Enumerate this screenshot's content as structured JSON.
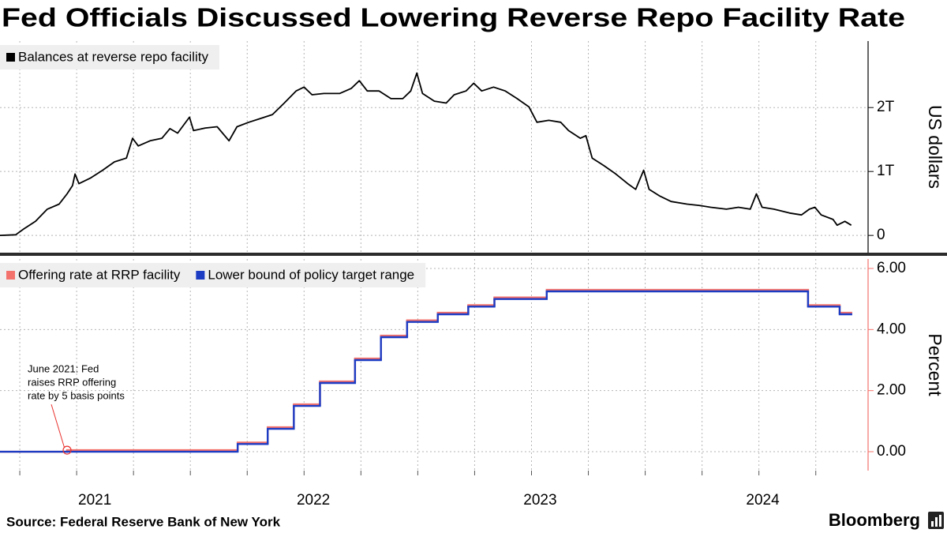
{
  "title": "Fed Officials Discussed Lowering Reverse Repo Facility Rate",
  "source": "Source: Federal Reserve Bank of New York",
  "brand": "Bloomberg",
  "chart_data": [
    {
      "type": "line",
      "x": [
        2021.163,
        2021.232,
        2021.267,
        2021.319,
        2021.371,
        2021.423,
        2021.458,
        2021.482,
        2021.493,
        2021.51,
        2021.562,
        2021.614,
        2021.666,
        2021.719,
        2021.746,
        2021.771,
        2021.823,
        2021.875,
        2021.91,
        2021.944,
        2021.996,
        2022.014,
        2022.066,
        2022.118,
        2022.17,
        2022.205,
        2022.257,
        2022.309,
        2022.361,
        2022.413,
        2022.465,
        2022.5,
        2022.535,
        2022.587,
        2022.656,
        2022.708,
        2022.743,
        2022.778,
        2022.83,
        2022.882,
        2022.934,
        2022.969,
        2022.996,
        2023.021,
        2023.073,
        2023.125,
        2023.16,
        2023.212,
        2023.246,
        2023.281,
        2023.333,
        2023.385,
        2023.437,
        2023.489,
        2023.524,
        2023.576,
        2023.628,
        2023.663,
        2023.715,
        2023.739,
        2023.767,
        2023.819,
        2023.871,
        2023.923,
        2023.958,
        2023.993,
        2024.017,
        2024.062,
        2024.114,
        2024.184,
        2024.236,
        2024.288,
        2024.357,
        2024.41,
        2024.462,
        2024.489,
        2024.514,
        2024.566,
        2024.635,
        2024.687,
        2024.722,
        2024.746,
        2024.774,
        2024.826,
        2024.844,
        2024.878,
        2024.906
      ],
      "series": [
        {
          "name": "Balances at reverse repo facility",
          "color": "#000000",
          "values": [
            0,
            10000000000.0,
            100000000000.0,
            220000000000.0,
            410000000000.0,
            490000000000.0,
            650000000000.0,
            780000000000.0,
            960000000000.0,
            810000000000.0,
            900000000000.0,
            1020000000000.0,
            1150000000000.0,
            1210000000000.0,
            1520000000000.0,
            1400000000000.0,
            1480000000000.0,
            1520000000000.0,
            1670000000000.0,
            1600000000000.0,
            1850000000000.0,
            1640000000000.0,
            1680000000000.0,
            1700000000000.0,
            1480000000000.0,
            1700000000000.0,
            1770000000000.0,
            1830000000000.0,
            1890000000000.0,
            2070000000000.0,
            2260000000000.0,
            2320000000000.0,
            2200000000000.0,
            2220000000000.0,
            2220000000000.0,
            2300000000000.0,
            2420000000000.0,
            2260000000000.0,
            2260000000000.0,
            2140000000000.0,
            2140000000000.0,
            2260000000000.0,
            2540000000000.0,
            2220000000000.0,
            2100000000000.0,
            2070000000000.0,
            2200000000000.0,
            2260000000000.0,
            2380000000000.0,
            2260000000000.0,
            2320000000000.0,
            2260000000000.0,
            2140000000000.0,
            2010000000000.0,
            1770000000000.0,
            1800000000000.0,
            1770000000000.0,
            1640000000000.0,
            1520000000000.0,
            1560000000000.0,
            1210000000000.0,
            1090000000000.0,
            960000000000.0,
            810000000000.0,
            720000000000.0,
            1020000000000.0,
            720000000000.0,
            620000000000.0,
            530000000000.0,
            490000000000.0,
            470000000000.0,
            440000000000.0,
            410000000000.0,
            440000000000.0,
            410000000000.0,
            650000000000.0,
            440000000000.0,
            410000000000.0,
            350000000000.0,
            320000000000.0,
            410000000000.0,
            440000000000.0,
            320000000000.0,
            250000000000.0,
            160000000000.0,
            220000000000.0,
            160000000000.0
          ]
        }
      ],
      "xlim": [
        2021.163,
        2024.98
      ],
      "xgrid": [
        2021.25,
        2021.5,
        2021.75,
        2022.0,
        2022.25,
        2022.5,
        2022.75,
        2023.0,
        2023.25,
        2023.5,
        2023.75,
        2024.0,
        2024.25,
        2024.5,
        2024.75
      ],
      "ylim": [
        -270000000000.0,
        3040000000000.0
      ],
      "yticks": [
        0,
        {
          "value": 1000000000000.0,
          "label": "1T"
        },
        {
          "value": 2000000000000.0,
          "label": "2T"
        }
      ],
      "ylabel": "US dollars",
      "axis_color": "#000000",
      "grid": true
    },
    {
      "type": "line",
      "drawstyle": "steps-post",
      "x": [
        2021.163,
        2021.458,
        2022.208,
        2022.34,
        2022.455,
        2022.57,
        2022.724,
        2022.838,
        2022.953,
        2023.088,
        2023.222,
        2023.337,
        2023.567,
        2024.716,
        2024.855,
        2024.906
      ],
      "series": [
        {
          "name": "Offering rate at RRP facility",
          "color": "#f4726c",
          "values": [
            0,
            0.05,
            0.3,
            0.8,
            1.55,
            2.3,
            3.05,
            3.8,
            4.3,
            4.55,
            4.8,
            5.05,
            5.3,
            4.8,
            4.55,
            4.55
          ]
        },
        {
          "name": "Lower bound of policy target range",
          "color": "#1c3cc4",
          "values": [
            0,
            0,
            0.25,
            0.75,
            1.5,
            2.25,
            3.0,
            3.75,
            4.25,
            4.5,
            4.75,
            5.0,
            5.25,
            4.75,
            4.5,
            4.5
          ]
        }
      ],
      "xlim": [
        2021.163,
        2024.98
      ],
      "xgrid": [
        2021.25,
        2021.5,
        2021.75,
        2022.0,
        2022.25,
        2022.5,
        2022.75,
        2023.0,
        2023.25,
        2023.5,
        2023.75,
        2024.0,
        2024.25,
        2024.5,
        2024.75
      ],
      "xticks": [
        {
          "value": 2021.58,
          "label": "2021"
        },
        {
          "value": 2022.541,
          "label": "2022"
        },
        {
          "value": 2023.538,
          "label": "2023"
        },
        {
          "value": 2024.517,
          "label": "2024"
        }
      ],
      "ylim": [
        -0.62,
        6.31
      ],
      "yticks": [
        {
          "value": 0,
          "label": "0.00"
        },
        {
          "value": 2,
          "label": "2.00"
        },
        {
          "value": 4,
          "label": "4.00"
        },
        {
          "value": 6,
          "label": "6.00"
        }
      ],
      "ylabel": "Percent",
      "axis_color": "#f4726c",
      "annotation": {
        "lines": [
          "June 2021: Fed",
          "raises RRP offering",
          "rate by 5 basis points"
        ],
        "x": 2021.458,
        "y": 0.05,
        "color": "#e8302c"
      },
      "grid": true
    }
  ]
}
